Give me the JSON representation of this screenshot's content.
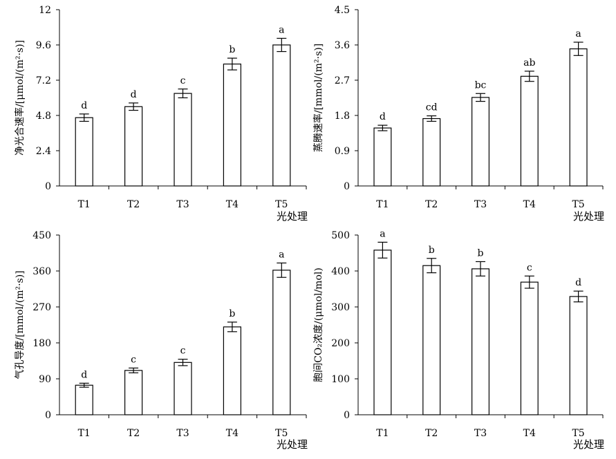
{
  "figure": {
    "xlabel": "光处理"
  },
  "chart_data": [
    {
      "type": "bar",
      "ylabel": "净光合速率/[μmol/(m²·s)]",
      "xlabel": "光处理",
      "categories": [
        "T1",
        "T2",
        "T3",
        "T4",
        "T5"
      ],
      "values": [
        4.65,
        5.4,
        6.3,
        8.3,
        9.6
      ],
      "errors": [
        0.25,
        0.25,
        0.3,
        0.4,
        0.45
      ],
      "labels": [
        "d",
        "d",
        "c",
        "b",
        "a"
      ],
      "ylim": [
        0,
        12
      ],
      "yticks": [
        "0",
        "2.4",
        "4.8",
        "7.2",
        "9.6",
        "12"
      ],
      "grid": false
    },
    {
      "type": "bar",
      "ylabel": "蒸腾速率/[mmol/(m²·s)]",
      "xlabel": "光处理",
      "categories": [
        "T1",
        "T2",
        "T3",
        "T4",
        "T5"
      ],
      "values": [
        1.48,
        1.72,
        2.26,
        2.8,
        3.5
      ],
      "errors": [
        0.07,
        0.07,
        0.1,
        0.13,
        0.17
      ],
      "labels": [
        "d",
        "cd",
        "bc",
        "ab",
        "a"
      ],
      "ylim": [
        0,
        4.5
      ],
      "yticks": [
        "0",
        "0.9",
        "1.8",
        "2.7",
        "3.6",
        "4.5"
      ],
      "grid": false
    },
    {
      "type": "bar",
      "ylabel": "气孔导度/[mmol/(m²·s)]",
      "xlabel": "光处理",
      "categories": [
        "T1",
        "T2",
        "T3",
        "T4",
        "T5"
      ],
      "values": [
        74,
        111,
        131,
        220,
        362
      ],
      "errors": [
        5,
        6,
        8,
        12,
        18
      ],
      "labels": [
        "d",
        "c",
        "c",
        "b",
        "a"
      ],
      "ylim": [
        0,
        450
      ],
      "yticks": [
        "0",
        "90",
        "180",
        "270",
        "360",
        "450"
      ],
      "grid": false
    },
    {
      "type": "bar",
      "ylabel": "胞间CO₂浓度/(μmol/mol)",
      "xlabel": "光处理",
      "categories": [
        "T1",
        "T2",
        "T3",
        "T4",
        "T5"
      ],
      "values": [
        458,
        415,
        406,
        369,
        329
      ],
      "errors": [
        22,
        20,
        20,
        17,
        15
      ],
      "labels": [
        "a",
        "b",
        "b",
        "c",
        "d"
      ],
      "ylim": [
        0,
        500
      ],
      "yticks": [
        "0",
        "100",
        "200",
        "300",
        "400",
        "500"
      ],
      "grid": false
    }
  ]
}
